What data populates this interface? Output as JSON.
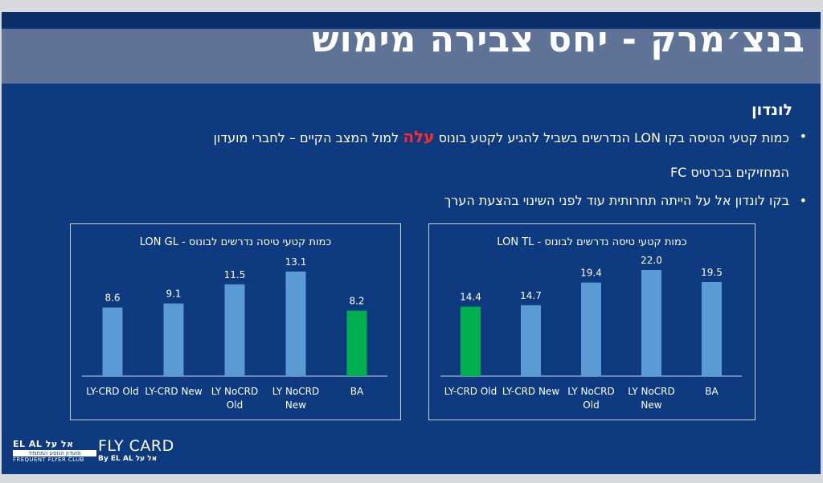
{
  "slide": {
    "title": "בנצ׳מרק - יחס צבירה מימוש",
    "section_title": "לונדון",
    "bullet1_line1_before": "כמות קטעי הטיסה בקו LON הנדרשים בשביל להגיע לקטע בונוס ",
    "bullet1_highlight": "עלה",
    "bullet1_line1_after": " למול המצב הקיים – לחברי מועדון",
    "bullet1_line2": "המחזיקים בכרטיס FC",
    "bullet2": "בקו לונדון אל על הייתה תחרותית עוד לפני השינוי בהצעת הערך",
    "colors": {
      "bar_blue": "#5b9bd5",
      "bar_green": "#00b050",
      "background": "#0e3a80"
    }
  },
  "brand": {
    "elal_text": "EL AL אל על",
    "elal_sub": "מועדון הנוסע המתמיד",
    "club_text": "FREQUENT FLYER CLUB",
    "flycard_text": "FLY CARD",
    "flycard_by": "By EL AL אל על"
  },
  "chart_data": [
    {
      "type": "bar",
      "title": "כמות קטעי טיסה נדרשים לבונוס - LON GL",
      "categories": [
        "LY-CRD Old",
        "LY-CRD New",
        "LY NoCRD Old",
        "LY NoCRD New",
        "BA"
      ],
      "values": [
        8.6,
        9.1,
        11.5,
        13.1,
        8.2
      ],
      "bar_colors": [
        "#5b9bd5",
        "#5b9bd5",
        "#5b9bd5",
        "#5b9bd5",
        "#00b050"
      ],
      "ylim": [
        0,
        14.5
      ],
      "xlabel": "",
      "ylabel": "",
      "grid": false
    },
    {
      "type": "bar",
      "title": "כמות קטעי טיסה נדרשים לבונוס - LON TL",
      "categories": [
        "LY-CRD Old",
        "LY-CRD New",
        "LY NoCRD Old",
        "LY NoCRD New",
        "BA"
      ],
      "values": [
        14.4,
        14.7,
        19.4,
        22.0,
        19.5
      ],
      "bar_colors": [
        "#00b050",
        "#5b9bd5",
        "#5b9bd5",
        "#5b9bd5",
        "#5b9bd5"
      ],
      "ylim": [
        0,
        24
      ],
      "xlabel": "",
      "ylabel": "",
      "grid": false
    }
  ]
}
